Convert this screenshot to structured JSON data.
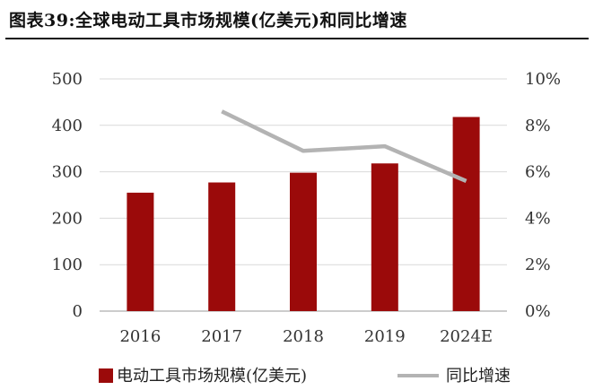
{
  "page": {
    "title": "图表39:全球电动工具市场规模(亿美元)和同比增速"
  },
  "chart_data": {
    "type": "bar",
    "categories": [
      "2016",
      "2017",
      "2018",
      "2019",
      "2024E"
    ],
    "series": [
      {
        "name": "电动工具市场规模(亿美元)",
        "type": "bar",
        "axis": "left",
        "color": "#9b0a0a",
        "values": [
          255,
          277,
          298,
          318,
          418
        ]
      },
      {
        "name": "同比增速",
        "type": "line",
        "axis": "right",
        "color": "#b3b3b3",
        "values": [
          null,
          8.6,
          6.9,
          7.1,
          5.6
        ]
      }
    ],
    "y_left": {
      "min": 0,
      "max": 500,
      "ticks": [
        0,
        100,
        200,
        300,
        400,
        500
      ],
      "tick_labels": [
        "0",
        "100",
        "200",
        "300",
        "400",
        "500"
      ]
    },
    "y_right": {
      "min": 0,
      "max": 10,
      "ticks": [
        0,
        2,
        4,
        6,
        8,
        10
      ],
      "tick_labels": [
        "0%",
        "2%",
        "4%",
        "6%",
        "8%",
        "10%"
      ]
    },
    "grid": "horizontal",
    "legend": "bottom",
    "xlabel": "",
    "ylabel": ""
  }
}
